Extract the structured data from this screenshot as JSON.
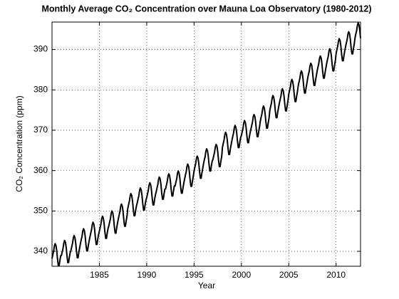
{
  "chart_data": {
    "type": "line",
    "title": "Monthly Average CO₂ Concentration over Mauna Loa Observatory (1980-2012)",
    "x_label": "Year",
    "y_label": "CO₂ Concentration (ppm)",
    "color": "#000000",
    "grid": true,
    "xlim": [
      1980,
      2012.58
    ],
    "ylim": [
      336.3,
      396.8
    ],
    "xticks": [
      1985,
      1990,
      1995,
      2000,
      2005,
      2010
    ],
    "yticks": [
      340,
      350,
      360,
      370,
      380,
      390
    ],
    "x": [
      1980,
      1980.08,
      1980.17,
      1980.25,
      1980.33,
      1980.42,
      1980.5,
      1980.58,
      1980.67,
      1980.75,
      1980.83,
      1980.92,
      1981,
      1981.08,
      1981.17,
      1981.25,
      1981.33,
      1981.42,
      1981.5,
      1981.58,
      1981.67,
      1981.75,
      1981.83,
      1981.92,
      1982,
      1982.08,
      1982.17,
      1982.25,
      1982.33,
      1982.42,
      1982.5,
      1982.58,
      1982.67,
      1982.75,
      1982.83,
      1982.92,
      1983,
      1983.08,
      1983.17,
      1983.25,
      1983.33,
      1983.42,
      1983.5,
      1983.58,
      1983.67,
      1983.75,
      1983.83,
      1983.92,
      1984,
      1984.08,
      1984.17,
      1984.25,
      1984.33,
      1984.42,
      1984.5,
      1984.58,
      1984.67,
      1984.75,
      1984.83,
      1984.92,
      1985,
      1985.08,
      1985.17,
      1985.25,
      1985.33,
      1985.42,
      1985.5,
      1985.58,
      1985.67,
      1985.75,
      1985.83,
      1985.92,
      1986,
      1986.08,
      1986.17,
      1986.25,
      1986.33,
      1986.42,
      1986.5,
      1986.58,
      1986.67,
      1986.75,
      1986.83,
      1986.92,
      1987,
      1987.08,
      1987.17,
      1987.25,
      1987.33,
      1987.42,
      1987.5,
      1987.58,
      1987.67,
      1987.75,
      1987.83,
      1987.92,
      1988,
      1988.08,
      1988.17,
      1988.25,
      1988.33,
      1988.42,
      1988.5,
      1988.58,
      1988.67,
      1988.75,
      1988.83,
      1988.92,
      1989,
      1989.08,
      1989.17,
      1989.25,
      1989.33,
      1989.42,
      1989.5,
      1989.58,
      1989.67,
      1989.75,
      1989.83,
      1989.92,
      1990,
      1990.08,
      1990.17,
      1990.25,
      1990.33,
      1990.42,
      1990.5,
      1990.58,
      1990.67,
      1990.75,
      1990.83,
      1990.92,
      1991,
      1991.08,
      1991.17,
      1991.25,
      1991.33,
      1991.42,
      1991.5,
      1991.58,
      1991.67,
      1991.75,
      1991.83,
      1991.92,
      1992,
      1992.08,
      1992.17,
      1992.25,
      1992.33,
      1992.42,
      1992.5,
      1992.58,
      1992.67,
      1992.75,
      1992.83,
      1992.92,
      1993,
      1993.08,
      1993.17,
      1993.25,
      1993.33,
      1993.42,
      1993.5,
      1993.58,
      1993.67,
      1993.75,
      1993.83,
      1993.92,
      1994,
      1994.08,
      1994.17,
      1994.25,
      1994.33,
      1994.42,
      1994.5,
      1994.58,
      1994.67,
      1994.75,
      1994.83,
      1994.92,
      1995,
      1995.08,
      1995.17,
      1995.25,
      1995.33,
      1995.42,
      1995.5,
      1995.58,
      1995.67,
      1995.75,
      1995.83,
      1995.92,
      1996,
      1996.08,
      1996.17,
      1996.25,
      1996.33,
      1996.42,
      1996.5,
      1996.58,
      1996.67,
      1996.75,
      1996.83,
      1996.92,
      1997,
      1997.08,
      1997.17,
      1997.25,
      1997.33,
      1997.42,
      1997.5,
      1997.58,
      1997.67,
      1997.75,
      1997.83,
      1997.92,
      1998,
      1998.08,
      1998.17,
      1998.25,
      1998.33,
      1998.42,
      1998.5,
      1998.58,
      1998.67,
      1998.75,
      1998.83,
      1998.92,
      1999,
      1999.08,
      1999.17,
      1999.25,
      1999.33,
      1999.42,
      1999.5,
      1999.58,
      1999.67,
      1999.75,
      1999.83,
      1999.92,
      2000,
      2000.08,
      2000.17,
      2000.25,
      2000.33,
      2000.42,
      2000.5,
      2000.58,
      2000.67,
      2000.75,
      2000.83,
      2000.92,
      2001,
      2001.08,
      2001.17,
      2001.25,
      2001.33,
      2001.42,
      2001.5,
      2001.58,
      2001.67,
      2001.75,
      2001.83,
      2001.92,
      2002,
      2002.08,
      2002.17,
      2002.25,
      2002.33,
      2002.42,
      2002.5,
      2002.58,
      2002.67,
      2002.75,
      2002.83,
      2002.92,
      2003,
      2003.08,
      2003.17,
      2003.25,
      2003.33,
      2003.42,
      2003.5,
      2003.58,
      2003.67,
      2003.75,
      2003.83,
      2003.92,
      2004,
      2004.08,
      2004.17,
      2004.25,
      2004.33,
      2004.42,
      2004.5,
      2004.58,
      2004.67,
      2004.75,
      2004.83,
      2004.92,
      2005,
      2005.08,
      2005.17,
      2005.25,
      2005.33,
      2005.42,
      2005.5,
      2005.58,
      2005.67,
      2005.75,
      2005.83,
      2005.92,
      2006,
      2006.08,
      2006.17,
      2006.25,
      2006.33,
      2006.42,
      2006.5,
      2006.58,
      2006.67,
      2006.75,
      2006.83,
      2006.92,
      2007,
      2007.08,
      2007.17,
      2007.25,
      2007.33,
      2007.42,
      2007.5,
      2007.58,
      2007.67,
      2007.75,
      2007.83,
      2007.92,
      2008,
      2008.08,
      2008.17,
      2008.25,
      2008.33,
      2008.42,
      2008.5,
      2008.58,
      2008.67,
      2008.75,
      2008.83,
      2008.92,
      2009,
      2009.08,
      2009.17,
      2009.25,
      2009.33,
      2009.42,
      2009.5,
      2009.58,
      2009.67,
      2009.75,
      2009.83,
      2009.92,
      2010,
      2010.08,
      2010.17,
      2010.25,
      2010.33,
      2010.42,
      2010.5,
      2010.58,
      2010.67,
      2010.75,
      2010.83,
      2010.92,
      2011,
      2011.08,
      2011.17,
      2011.25,
      2011.33,
      2011.42,
      2011.5,
      2011.58,
      2011.67,
      2011.75,
      2011.83,
      2011.92,
      2012,
      2012.08,
      2012.17,
      2012.25,
      2012.33,
      2012.42,
      2012.5,
      2012.58
    ],
    "values": [
      338.2,
      339.1,
      340.0,
      341.3,
      341.9,
      341.4,
      340.1,
      338.1,
      336.4,
      336.4,
      337.7,
      338.9,
      339.0,
      339.9,
      340.8,
      342.1,
      342.7,
      342.2,
      340.9,
      338.9,
      337.2,
      337.2,
      338.5,
      339.7,
      340.2,
      341.1,
      342.0,
      343.3,
      343.9,
      343.4,
      342.1,
      340.1,
      338.4,
      338.4,
      339.7,
      340.9,
      341.9,
      342.8,
      343.7,
      345.0,
      345.6,
      345.1,
      343.8,
      341.8,
      340.1,
      340.1,
      341.4,
      342.6,
      343.5,
      344.4,
      345.3,
      346.6,
      347.2,
      346.7,
      345.4,
      343.4,
      341.7,
      341.7,
      343.0,
      344.2,
      345.0,
      345.9,
      346.8,
      348.1,
      348.7,
      348.2,
      346.9,
      344.9,
      343.2,
      343.2,
      344.5,
      345.7,
      346.3,
      347.2,
      348.1,
      349.4,
      350.0,
      349.5,
      348.2,
      346.2,
      344.5,
      344.5,
      345.8,
      347.0,
      348.0,
      348.9,
      349.8,
      351.1,
      351.7,
      351.2,
      349.9,
      347.9,
      346.2,
      346.2,
      347.5,
      348.7,
      350.6,
      351.5,
      352.4,
      353.7,
      354.3,
      353.8,
      352.5,
      350.5,
      348.8,
      348.8,
      350.1,
      351.3,
      352.0,
      352.9,
      353.8,
      355.1,
      355.7,
      355.2,
      353.9,
      351.9,
      350.2,
      350.2,
      351.5,
      352.7,
      353.3,
      354.2,
      355.1,
      356.4,
      357.0,
      356.5,
      355.2,
      353.2,
      351.5,
      351.5,
      352.8,
      354.0,
      354.7,
      355.6,
      356.5,
      357.8,
      358.4,
      357.9,
      356.6,
      354.6,
      352.9,
      352.9,
      354.2,
      355.4,
      355.5,
      356.4,
      357.3,
      358.6,
      359.2,
      358.7,
      357.4,
      355.4,
      353.7,
      353.7,
      355.0,
      356.2,
      356.2,
      357.1,
      358.0,
      359.3,
      359.9,
      359.4,
      358.1,
      356.1,
      354.4,
      354.4,
      355.7,
      356.9,
      357.9,
      358.8,
      359.7,
      361.0,
      361.6,
      361.1,
      359.8,
      357.8,
      356.1,
      356.1,
      357.4,
      358.6,
      359.9,
      360.8,
      361.7,
      363.0,
      363.6,
      363.1,
      361.8,
      359.8,
      358.1,
      358.1,
      359.4,
      360.6,
      361.7,
      362.6,
      363.5,
      364.8,
      365.4,
      364.9,
      363.6,
      361.6,
      359.9,
      359.9,
      361.2,
      362.4,
      362.8,
      363.7,
      364.6,
      365.9,
      366.5,
      366.0,
      364.7,
      362.7,
      361.0,
      361.0,
      362.3,
      363.5,
      365.8,
      366.7,
      367.6,
      368.9,
      369.5,
      369.0,
      367.7,
      365.7,
      364.0,
      364.0,
      365.3,
      366.5,
      367.5,
      368.4,
      369.3,
      370.6,
      371.2,
      370.7,
      369.4,
      367.4,
      365.7,
      365.7,
      367.0,
      368.2,
      368.7,
      369.6,
      370.5,
      371.8,
      372.4,
      371.9,
      370.6,
      368.6,
      366.9,
      366.9,
      368.2,
      369.4,
      370.2,
      371.1,
      372.0,
      373.3,
      373.9,
      373.4,
      372.1,
      370.1,
      368.4,
      368.4,
      369.7,
      370.9,
      372.3,
      373.2,
      374.1,
      375.4,
      376.0,
      375.5,
      374.2,
      372.2,
      370.5,
      370.5,
      371.8,
      373.0,
      374.9,
      375.8,
      376.7,
      378.0,
      378.6,
      378.1,
      376.8,
      374.8,
      373.1,
      373.1,
      374.4,
      375.6,
      376.6,
      377.5,
      378.4,
      379.7,
      380.3,
      379.8,
      378.5,
      376.5,
      374.8,
      374.8,
      376.1,
      377.3,
      378.9,
      379.8,
      380.7,
      382.0,
      382.6,
      382.1,
      380.8,
      378.8,
      377.1,
      377.1,
      378.4,
      379.6,
      381.0,
      381.9,
      382.8,
      384.1,
      384.7,
      384.2,
      382.9,
      380.9,
      379.2,
      379.2,
      380.5,
      381.7,
      382.9,
      383.8,
      384.7,
      386.0,
      386.6,
      386.1,
      384.8,
      382.8,
      381.1,
      381.1,
      382.4,
      383.6,
      384.7,
      385.6,
      386.5,
      387.8,
      388.4,
      387.9,
      386.6,
      384.6,
      382.9,
      382.9,
      384.2,
      385.4,
      386.5,
      387.4,
      388.3,
      389.6,
      390.2,
      389.7,
      388.4,
      386.4,
      384.7,
      384.7,
      386.0,
      387.2,
      389.0,
      389.9,
      390.8,
      392.1,
      392.7,
      392.2,
      390.9,
      388.9,
      387.2,
      387.2,
      388.5,
      389.7,
      390.7,
      391.6,
      392.5,
      393.8,
      394.4,
      393.9,
      392.6,
      390.6,
      388.9,
      388.9,
      390.2,
      391.4,
      392.9,
      393.8,
      394.7,
      396.0,
      396.6,
      396.1,
      394.8,
      392.8
    ]
  }
}
